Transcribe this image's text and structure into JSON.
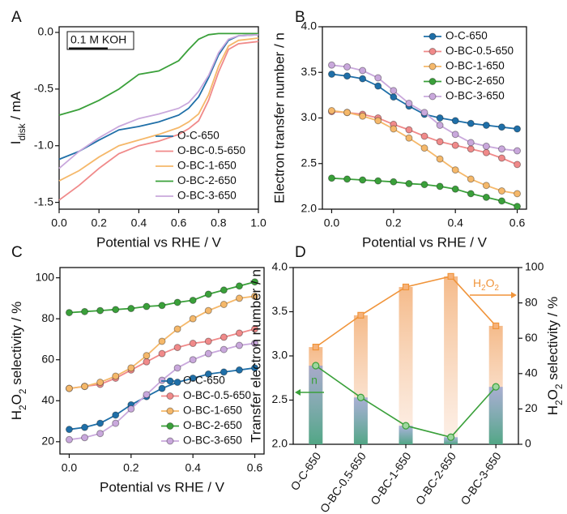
{
  "chart_data": [
    {
      "type": "line",
      "panel": "A",
      "xlabel": "Potential vs RHE / V",
      "ylabel": [
        "I",
        "disk",
        " / mA"
      ],
      "annotation": "0.1 M KOH",
      "xlim": [
        0,
        1
      ],
      "ylim": [
        -1.56,
        0.05
      ],
      "xticks": [
        {
          "value": 0,
          "label": "0.0"
        },
        0.2,
        0.4,
        0.6,
        0.8,
        {
          "value": 1,
          "label": "1.0"
        }
      ],
      "yticks": [
        {
          "value": 0,
          "label": "0.0"
        },
        -0.5,
        {
          "value": -1,
          "label": "-1.0"
        },
        -1.5
      ],
      "legend": "lower right",
      "markers": false,
      "x": [
        0,
        0.1,
        0.2,
        0.3,
        0.4,
        0.5,
        0.6,
        0.65,
        0.7,
        0.75,
        0.8,
        0.85,
        0.9,
        1.0
      ],
      "series": [
        {
          "name": "O-C-650",
          "color": "#1f6fa8",
          "values": [
            -1.12,
            -1.05,
            -0.95,
            -0.86,
            -0.83,
            -0.79,
            -0.73,
            -0.67,
            -0.57,
            -0.4,
            -0.2,
            -0.07,
            -0.03,
            -0.02
          ]
        },
        {
          "name": "O-BC-0.5-650",
          "color": "#f08a8a",
          "values": [
            -1.48,
            -1.35,
            -1.2,
            -1.07,
            -1.0,
            -0.96,
            -0.9,
            -0.85,
            -0.78,
            -0.6,
            -0.35,
            -0.15,
            -0.1,
            -0.08
          ]
        },
        {
          "name": "O-BC-1-650",
          "color": "#f5b86a",
          "values": [
            -1.31,
            -1.22,
            -1.1,
            -1.0,
            -0.95,
            -0.9,
            -0.84,
            -0.79,
            -0.72,
            -0.55,
            -0.3,
            -0.12,
            -0.07,
            -0.05
          ]
        },
        {
          "name": "O-BC-2-650",
          "color": "#3aa03a",
          "values": [
            -0.73,
            -0.68,
            -0.6,
            -0.5,
            -0.37,
            -0.34,
            -0.25,
            -0.15,
            -0.06,
            -0.02,
            -0.01,
            -0.01,
            -0.01,
            -0.01
          ]
        },
        {
          "name": "O-BC-3-650",
          "color": "#c9a8dc",
          "values": [
            -1.2,
            -1.05,
            -0.93,
            -0.83,
            -0.76,
            -0.72,
            -0.67,
            -0.62,
            -0.52,
            -0.38,
            -0.18,
            -0.06,
            -0.03,
            -0.02
          ]
        }
      ]
    },
    {
      "type": "line",
      "panel": "B",
      "xlabel": "Potential vs RHE / V",
      "ylabel": "Electron transfer number / n",
      "xlim": [
        -0.03,
        0.63
      ],
      "ylim": [
        2.0,
        4.0
      ],
      "xticks": [
        {
          "value": 0,
          "label": "0.0"
        },
        0.2,
        0.4,
        0.6
      ],
      "yticks": [
        {
          "value": 2,
          "label": "2.0"
        },
        2.5,
        {
          "value": 3,
          "label": "3.0"
        },
        3.5,
        {
          "value": 4,
          "label": "4.0"
        }
      ],
      "legend": "upper right",
      "markers": true,
      "x": [
        0,
        0.05,
        0.1,
        0.15,
        0.2,
        0.25,
        0.3,
        0.35,
        0.4,
        0.45,
        0.5,
        0.55,
        0.6
      ],
      "series": [
        {
          "name": "O-C-650",
          "color": "#1f6fa8",
          "values": [
            3.48,
            3.46,
            3.43,
            3.35,
            3.23,
            3.13,
            3.04,
            3.0,
            2.97,
            2.94,
            2.92,
            2.9,
            2.88
          ]
        },
        {
          "name": "O-BC-0.5-650",
          "color": "#f08a8a",
          "values": [
            3.07,
            3.06,
            3.04,
            3.0,
            2.93,
            2.87,
            2.8,
            2.74,
            2.7,
            2.66,
            2.62,
            2.56,
            2.49
          ]
        },
        {
          "name": "O-BC-1-650",
          "color": "#f5b86a",
          "values": [
            3.08,
            3.06,
            3.02,
            2.97,
            2.88,
            2.78,
            2.67,
            2.55,
            2.43,
            2.33,
            2.26,
            2.2,
            2.17
          ]
        },
        {
          "name": "O-BC-2-650",
          "color": "#3aa03a",
          "values": [
            2.34,
            2.33,
            2.32,
            2.31,
            2.3,
            2.28,
            2.27,
            2.25,
            2.22,
            2.17,
            2.13,
            2.09,
            2.03
          ]
        },
        {
          "name": "O-BC-3-650",
          "color": "#c9a8dc",
          "values": [
            3.58,
            3.56,
            3.52,
            3.44,
            3.3,
            3.16,
            3.06,
            2.92,
            2.82,
            2.73,
            2.69,
            2.66,
            2.64
          ]
        }
      ]
    },
    {
      "type": "line",
      "panel": "C",
      "xlabel": "Potential vs RHE / V",
      "ylabel": [
        "H",
        "2",
        "O",
        "2",
        " selectivity / %"
      ],
      "xlim": [
        -0.03,
        0.63
      ],
      "ylim": [
        14,
        105
      ],
      "xticks": [
        {
          "value": 0,
          "label": "0.0"
        },
        0.2,
        0.4,
        0.6
      ],
      "yticks": [
        20,
        40,
        60,
        80,
        100
      ],
      "legend": "lower right",
      "markers": true,
      "x": [
        0,
        0.05,
        0.1,
        0.15,
        0.2,
        0.25,
        0.3,
        0.35,
        0.4,
        0.45,
        0.5,
        0.55,
        0.6
      ],
      "series": [
        {
          "name": "O-C-650",
          "color": "#1f6fa8",
          "values": [
            26,
            27,
            29,
            33,
            38,
            42,
            46,
            49,
            51,
            53,
            54,
            55,
            56
          ]
        },
        {
          "name": "O-BC-0.5-650",
          "color": "#f08a8a",
          "values": [
            46,
            47,
            48,
            51,
            55,
            59,
            63,
            66,
            68,
            69,
            71,
            73,
            75
          ]
        },
        {
          "name": "O-BC-1-650",
          "color": "#f5b86a",
          "values": [
            46,
            47,
            49,
            52,
            56,
            62,
            69,
            75,
            80,
            84,
            87,
            90,
            91
          ]
        },
        {
          "name": "O-BC-2-650",
          "color": "#3aa03a",
          "values": [
            83,
            83.5,
            84,
            84.5,
            85,
            86,
            86.5,
            88,
            89,
            92,
            94,
            96,
            98
          ]
        },
        {
          "name": "O-BC-3-650",
          "color": "#c9a8dc",
          "values": [
            21,
            22,
            24,
            29,
            36,
            43,
            50,
            56,
            60,
            63,
            65,
            67,
            68
          ]
        }
      ]
    },
    {
      "type": "bar_line",
      "panel": "D",
      "ylabel": "Transfer electron number / n",
      "y2label": [
        "H",
        "2",
        "O",
        "2",
        " selectivity / %"
      ],
      "categories": [
        "O-C-650",
        "O-BC-0.5-650",
        "O-BC-1-650",
        "O-BC-2-650",
        "O-BC-3-650"
      ],
      "ylim": [
        2.0,
        4.0
      ],
      "yticks": [
        {
          "value": 2,
          "label": "2.0"
        },
        2.5,
        {
          "value": 3,
          "label": "3.0"
        },
        3.5,
        {
          "value": 4,
          "label": "4.0"
        }
      ],
      "y2lim": [
        0,
        100
      ],
      "y2ticks": [
        0,
        20,
        40,
        60,
        80,
        100
      ],
      "series": [
        {
          "name": "n",
          "color": "#3aa03a",
          "values": [
            2.89,
            2.53,
            2.21,
            2.08,
            2.65
          ]
        },
        {
          "name": [
            "H",
            "2",
            "O",
            "2"
          ],
          "color": "#f0943a",
          "axis": "y2",
          "values": [
            55,
            73,
            89,
            95,
            67
          ]
        }
      ]
    }
  ]
}
